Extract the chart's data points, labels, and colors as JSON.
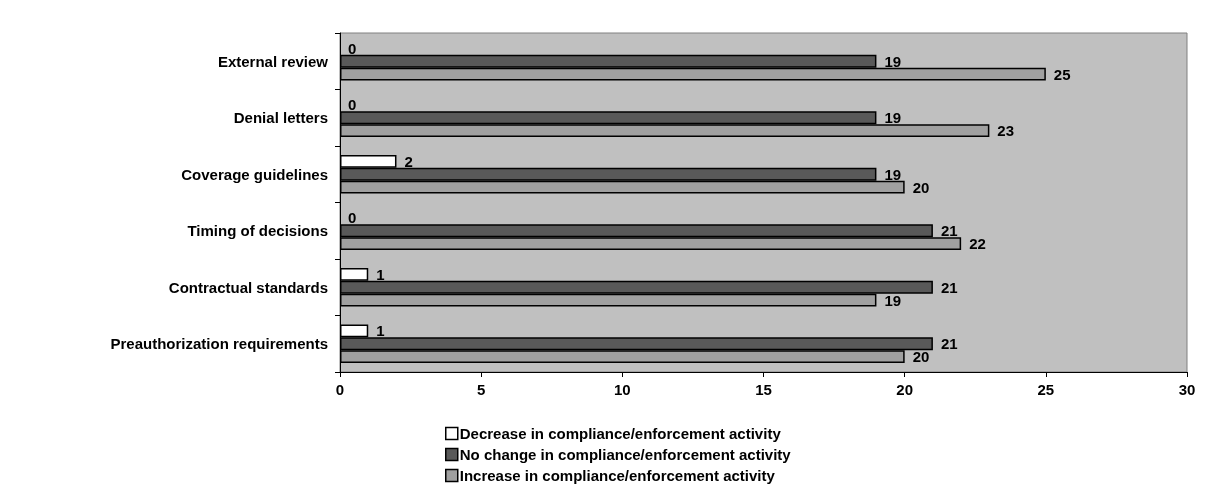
{
  "chart_data": {
    "type": "bar",
    "orientation": "horizontal",
    "categories": [
      "External review",
      "Denial letters",
      "Coverage guidelines",
      "Timing of decisions",
      "Contractual standards",
      "Preauthorization requirements"
    ],
    "series": [
      {
        "name": "Decrease in compliance/enforcement activity",
        "color": "#ffffff",
        "values": [
          0,
          0,
          2,
          0,
          1,
          1
        ]
      },
      {
        "name": "No change in compliance/enforcement activity",
        "color": "#595959",
        "values": [
          19,
          19,
          19,
          21,
          21,
          21
        ]
      },
      {
        "name": "Increase in compliance/enforcement activity",
        "color": "#a0a0a0",
        "values": [
          25,
          23,
          20,
          22,
          19,
          20
        ]
      }
    ],
    "xlim": [
      0,
      30
    ],
    "xticks": [
      0,
      5,
      10,
      15,
      20,
      25,
      30
    ],
    "grid": false,
    "legend": "bottom",
    "data_labels": true
  }
}
